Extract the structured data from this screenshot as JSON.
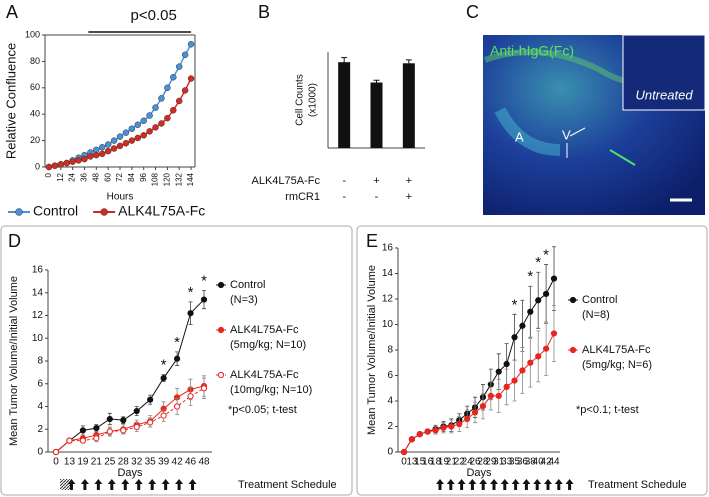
{
  "chart_data": [
    {
      "type": "line",
      "panel": "A",
      "ylabel": "Relative Confluence",
      "xlabel": "Hours",
      "x": [
        0,
        6,
        12,
        18,
        24,
        30,
        36,
        42,
        48,
        54,
        60,
        66,
        72,
        78,
        84,
        90,
        96,
        102,
        108,
        114,
        120,
        126,
        132,
        138,
        144
      ],
      "xlim": [
        -4,
        148
      ],
      "ylim": [
        0,
        100
      ],
      "xticks": [
        0,
        12,
        24,
        36,
        48,
        60,
        72,
        84,
        96,
        108,
        120,
        132,
        144
      ],
      "yticks": [
        0,
        20,
        40,
        60,
        80,
        100
      ],
      "significance": "p<0.05",
      "series": [
        {
          "name": "Control",
          "color": "#4a90d9",
          "values": [
            0,
            1,
            2,
            3,
            5,
            7,
            9,
            11,
            13,
            15,
            17,
            20,
            23,
            26,
            29,
            32,
            35,
            39,
            45,
            52,
            60,
            68,
            76,
            85,
            93
          ]
        },
        {
          "name": "ALK4L75A-Fc",
          "color": "#d42a20",
          "values": [
            0,
            1,
            2,
            3,
            4,
            5,
            6,
            8,
            9,
            10,
            12,
            14,
            16,
            18,
            20,
            22,
            24,
            27,
            30,
            33,
            37,
            43,
            50,
            58,
            67
          ]
        }
      ]
    },
    {
      "type": "bar",
      "panel": "B",
      "ylabel": [
        "Cell Counts",
        "(x1000)"
      ],
      "categories": [
        null,
        null,
        null
      ],
      "values": [
        76,
        58,
        75
      ],
      "errors": [
        4,
        2,
        3
      ],
      "ylim": [
        0,
        85
      ],
      "color": "#111111",
      "conditions": [
        {
          "label": "ALK4L75A-Fc",
          "marks": [
            "-",
            "+",
            "+"
          ]
        },
        {
          "label": "rmCR1",
          "marks": [
            "-",
            "-",
            "+"
          ]
        }
      ]
    },
    {
      "type": "line",
      "panel": "D",
      "ylabel": "Mean Tumor Volume/Initial Volume",
      "xlabel": "Days",
      "categories": [
        0,
        13,
        19,
        21,
        25,
        28,
        32,
        35,
        39,
        42,
        46,
        48
      ],
      "ylim": [
        0,
        16
      ],
      "yticks": [
        0,
        2,
        4,
        6,
        8,
        10,
        12,
        14,
        16
      ],
      "annotations": [
        null,
        null,
        null,
        null,
        null,
        null,
        null,
        null,
        "*",
        "*",
        "*",
        "*"
      ],
      "note": "*p<0.05; t-test",
      "schedule": "Treatment Schedule",
      "series": [
        {
          "name": "Control",
          "note": "(N=3)",
          "color": "#111111",
          "marker": "filled",
          "values": [
            0,
            1,
            1.9,
            2.1,
            2.9,
            2.8,
            3.6,
            4.6,
            6.5,
            8.2,
            12.2,
            13.4
          ],
          "errors": [
            0,
            0,
            0.4,
            0.3,
            0.5,
            0.3,
            0.4,
            0.4,
            0.3,
            0.6,
            1.0,
            0.8
          ]
        },
        {
          "name": "ALK4L75A-Fc",
          "note": "(5mg/kg; N=10)",
          "color": "#e8251e",
          "marker": "filled",
          "values": [
            0,
            1,
            1.2,
            1.5,
            1.8,
            2,
            2.4,
            2.7,
            3.8,
            4.8,
            5.5,
            5.8
          ],
          "errors": [
            0,
            0,
            0.3,
            0.3,
            0.4,
            0.4,
            0.4,
            0.5,
            0.6,
            0.8,
            0.9,
            0.9
          ]
        },
        {
          "name": "ALK4L75A-Fc",
          "note": "(10mg/kg; N=10)",
          "color": "#e8251e",
          "marker": "open",
          "dash": true,
          "values": [
            0,
            1,
            1,
            1.2,
            1.8,
            1.9,
            2.2,
            2.6,
            3.2,
            4,
            4.9,
            5.6
          ],
          "errors": [
            0,
            0.1,
            0.2,
            0.3,
            0.3,
            0.3,
            0.4,
            0.4,
            0.5,
            0.7,
            0.8,
            0.9
          ]
        }
      ]
    },
    {
      "type": "line",
      "panel": "E",
      "ylabel": "Mean Tumor Volume/Initial Volume",
      "xlabel": "Days",
      "categories": [
        0,
        13,
        15,
        16,
        18,
        19,
        21,
        22,
        24,
        26,
        28,
        29,
        31,
        33,
        35,
        36,
        38,
        40,
        42,
        44
      ],
      "ylim": [
        0,
        16
      ],
      "yticks": [
        0,
        2,
        4,
        6,
        8,
        10,
        12,
        14,
        16
      ],
      "annotations": [
        null,
        null,
        null,
        null,
        null,
        null,
        null,
        null,
        null,
        null,
        null,
        null,
        null,
        null,
        "*",
        null,
        "*",
        "*",
        "*",
        null
      ],
      "note": "*p<0.1; t-test",
      "schedule": "Treatment Schedule",
      "series": [
        {
          "name": "Control",
          "note": "(N=8)",
          "color": "#111111",
          "marker": "filled",
          "values": [
            0,
            1,
            1.4,
            1.6,
            1.8,
            2,
            2.1,
            2.5,
            3,
            3.5,
            4.3,
            5.3,
            6.3,
            6.9,
            9,
            9.9,
            11,
            11.9,
            12.4,
            13.6
          ],
          "errors": [
            0,
            0,
            0.1,
            0.2,
            0.3,
            0.4,
            0.5,
            0.5,
            0.6,
            0.8,
            1,
            1.2,
            1.4,
            1.6,
            1.8,
            2,
            2,
            2.2,
            2.3,
            2.5
          ]
        },
        {
          "name": "ALK4L75A-Fc",
          "note": "(5mg/kg; N=6)",
          "color": "#e8251e",
          "marker": "filled",
          "values": [
            0,
            1,
            1.4,
            1.6,
            1.7,
            1.9,
            2,
            2.2,
            2.6,
            3.1,
            3.6,
            4.4,
            4.4,
            5.1,
            5.6,
            6.4,
            7,
            7.5,
            8.1,
            9.3
          ],
          "errors": [
            0,
            0,
            0.1,
            0.2,
            0.3,
            0.4,
            0.5,
            0.6,
            0.7,
            0.8,
            1,
            1.1,
            1.3,
            1.4,
            1.6,
            1.8,
            1.9,
            2,
            2.1,
            2.2
          ]
        }
      ]
    }
  ],
  "panel_c": {
    "panel": "C",
    "stain": "Anti-hIgG(Fc)",
    "inset": "Untreated",
    "labels": [
      "A",
      "V"
    ]
  }
}
